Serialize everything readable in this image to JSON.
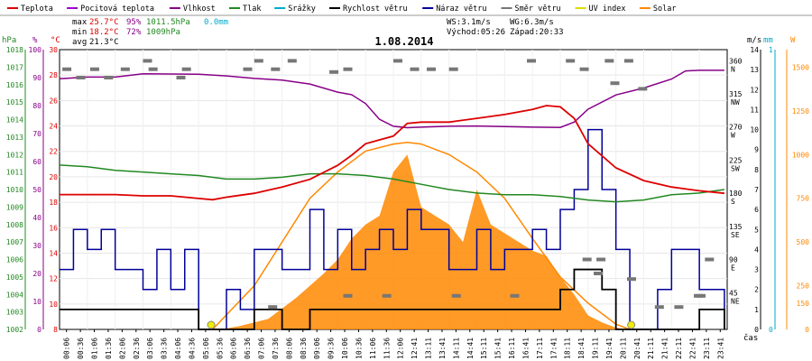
{
  "chart_data": {
    "type": "line",
    "title": "1.08.2014",
    "legend": [
      {
        "label": "Teplota",
        "color": "#dd0000"
      },
      {
        "label": "Pocitová teplota",
        "color": "#9900cc"
      },
      {
        "label": "Vlhkost",
        "color": "#880088"
      },
      {
        "label": "Tlak",
        "color": "#228822"
      },
      {
        "label": "Srážky",
        "color": "#00aacc"
      },
      {
        "label": "Rychlost větru",
        "color": "#000000"
      },
      {
        "label": "Náraz větru",
        "color": "#000099"
      },
      {
        "label": "Směr větru",
        "color": "#777777"
      },
      {
        "label": "UV index",
        "color": "#dddd00"
      },
      {
        "label": "Solar",
        "color": "#ff8800"
      }
    ],
    "stats": {
      "max_label": "max",
      "max_temp": "25.7°C",
      "max_hum": "95%",
      "max_press": "1011.5hPa",
      "rain": "0.0mm",
      "min_label": "min",
      "min_temp": "18.2°C",
      "min_hum": "72%",
      "min_press": "1009hPa",
      "avg_label": "avg",
      "avg_temp": "21.3°C"
    },
    "wind_info": {
      "ws": "WS:3.1m/s",
      "wg": "WG:6.3m/s",
      "sunrise": "Východ:05:26",
      "sunset": "Západ:20:33"
    },
    "left_axes": {
      "hpa": {
        "label": "hPa",
        "ticks": [
          "1002",
          "1003",
          "1004",
          "1005",
          "1006",
          "1007",
          "1008",
          "1009",
          "1010",
          "1011",
          "1012",
          "1013",
          "1014",
          "1015",
          "1016",
          "1017",
          "1018"
        ]
      },
      "pct": {
        "label": "%",
        "ticks": [
          "0",
          "10",
          "20",
          "30",
          "40",
          "50",
          "60",
          "70",
          "80",
          "90",
          "100"
        ]
      },
      "degc": {
        "label": "°C",
        "ticks": [
          "8",
          "10",
          "12",
          "14",
          "16",
          "18",
          "20",
          "22",
          "24",
          "26",
          "28",
          "30"
        ]
      }
    },
    "right_axes": {
      "dir": {
        "ticks": [
          "360 N",
          "315 NW",
          "270 W",
          "225 SW",
          "180 S",
          "135 SE",
          "90 E",
          "45 NE"
        ]
      },
      "ms": {
        "label": "m/s",
        "ticks": [
          "0",
          "1",
          "2",
          "3",
          "4",
          "5",
          "6",
          "7",
          "8",
          "9",
          "10",
          "11",
          "12",
          "13",
          "14"
        ]
      },
      "mm": {
        "label": "mm",
        "ticks": [
          "0",
          "1"
        ]
      },
      "wm2": {
        "label": "W",
        "ticks": [
          "0",
          "150",
          "250",
          "500",
          "750",
          "1000",
          "1250",
          "1500"
        ]
      }
    },
    "xlabel": "čas",
    "x_ticks": [
      "00:06",
      "00:36",
      "01:06",
      "01:36",
      "02:06",
      "02:36",
      "03:06",
      "03:36",
      "04:06",
      "04:36",
      "05:06",
      "05:36",
      "06:06",
      "06:36",
      "07:06",
      "07:36",
      "08:06",
      "08:36",
      "09:06",
      "09:36",
      "10:06",
      "10:36",
      "11:06",
      "11:36",
      "12:06",
      "12:41",
      "13:11",
      "13:41",
      "14:11",
      "14:41",
      "15:11",
      "15:41",
      "16:11",
      "16:41",
      "17:11",
      "17:41",
      "18:11",
      "18:41",
      "19:11",
      "19:41",
      "20:11",
      "20:41",
      "21:11",
      "21:41",
      "22:11",
      "22:41",
      "23:11",
      "23:41"
    ],
    "series": [
      {
        "name": "Teplota",
        "unit": "°C",
        "t": [
          0,
          1,
          2,
          3,
          4,
          5,
          5.5,
          6,
          7,
          8,
          9,
          10,
          10.5,
          11,
          11.5,
          12,
          12.5,
          13,
          14,
          15,
          16,
          17,
          17.5,
          18,
          18.5,
          19,
          20,
          21,
          22,
          23,
          23.9
        ],
        "values": [
          18.6,
          18.6,
          18.6,
          18.5,
          18.5,
          18.3,
          18.2,
          18.4,
          18.7,
          19.2,
          19.8,
          20.9,
          21.7,
          22.6,
          22.9,
          23.2,
          24.2,
          24.3,
          24.3,
          24.6,
          24.9,
          25.3,
          25.6,
          25.5,
          24.6,
          22.6,
          20.7,
          19.7,
          19.2,
          18.9,
          18.7
        ]
      },
      {
        "name": "Vlhkost",
        "unit": "%",
        "t": [
          0,
          1,
          2,
          3,
          4,
          5,
          6,
          7,
          8,
          9,
          10,
          10.5,
          11,
          11.5,
          12,
          12.5,
          13,
          14,
          15,
          16,
          17,
          18,
          18.5,
          19,
          20,
          21,
          22,
          22.5,
          23,
          23.9
        ],
        "values": [
          89.6,
          90.2,
          90.2,
          91.4,
          91.3,
          91.2,
          90.6,
          89.7,
          89.1,
          87.7,
          84.8,
          83.9,
          80.7,
          75.1,
          72.6,
          72.1,
          72.3,
          72.6,
          72.7,
          72.5,
          72.3,
          72.2,
          74.1,
          78.7,
          83.8,
          86.3,
          89.5,
          92.4,
          92.6,
          92.6
        ]
      },
      {
        "name": "Tlak",
        "unit": "hPa",
        "t": [
          0,
          1,
          2,
          3,
          4,
          5,
          6,
          7,
          8,
          9,
          10,
          11,
          12,
          13,
          14,
          15,
          16,
          17,
          18,
          19,
          20,
          21,
          22,
          23,
          23.9
        ],
        "values": [
          1011.4,
          1011.3,
          1011.1,
          1011.0,
          1010.9,
          1010.8,
          1010.6,
          1010.6,
          1010.7,
          1010.9,
          1010.9,
          1010.8,
          1010.6,
          1010.3,
          1010.0,
          1009.8,
          1009.7,
          1009.7,
          1009.6,
          1009.4,
          1009.3,
          1009.4,
          1009.7,
          1009.8,
          1010.0
        ]
      },
      {
        "name": "Rychlost větru",
        "unit": "m/s",
        "t": [
          0,
          2,
          4,
          5,
          6,
          7,
          8,
          9,
          10,
          11,
          12,
          13,
          14,
          15,
          16,
          17,
          18,
          18.5,
          19,
          19.5,
          20,
          21,
          22,
          23,
          23.9
        ],
        "values": [
          1,
          1,
          1,
          0,
          0,
          1,
          0,
          1,
          1,
          1,
          1,
          1,
          1,
          1,
          1,
          1,
          2,
          3,
          3,
          2,
          0,
          0,
          0,
          1,
          0
        ]
      },
      {
        "name": "Náraz větru",
        "unit": "m/s",
        "t": [
          0,
          0.5,
          1,
          1.5,
          2,
          3,
          3.5,
          4,
          4.5,
          5,
          6,
          6.5,
          7,
          8,
          9,
          9.5,
          10,
          10.5,
          11,
          11.5,
          12,
          12.5,
          13,
          14,
          15,
          15.5,
          16,
          17,
          17.5,
          18,
          18.5,
          19,
          19.5,
          20,
          20.5,
          21,
          21.5,
          22,
          23,
          23.9
        ],
        "values": [
          3,
          5,
          4,
          5,
          3,
          2,
          4,
          2,
          4,
          0,
          2,
          1,
          4,
          3,
          6,
          3,
          5,
          3,
          4,
          5,
          4,
          6,
          5,
          3,
          5,
          3,
          4,
          5,
          4,
          6,
          7,
          10,
          7,
          4,
          0,
          0,
          2,
          4,
          2,
          0
        ]
      },
      {
        "name": "Solar",
        "unit": "W/m²",
        "t": [
          5.5,
          6,
          6.5,
          7,
          7.5,
          8,
          8.5,
          9,
          9.5,
          10,
          10.5,
          11,
          11.5,
          12,
          12.5,
          13,
          13.5,
          14,
          14.5,
          15,
          15.5,
          16,
          16.5,
          17,
          17.5,
          18,
          18.5,
          19,
          19.5,
          20,
          20.5
        ],
        "values": [
          0,
          5,
          20,
          40,
          60,
          120,
          180,
          250,
          320,
          400,
          520,
          600,
          650,
          900,
          1000,
          700,
          650,
          600,
          500,
          800,
          600,
          550,
          500,
          450,
          420,
          300,
          200,
          80,
          40,
          10,
          0
        ]
      },
      {
        "name": "Solar (clear sky)",
        "unit": "W/m²",
        "t": [
          5.5,
          7,
          8,
          9,
          10,
          11,
          12,
          12.5,
          13,
          14,
          15,
          16,
          17,
          18,
          19,
          20,
          20.5
        ],
        "values": [
          0,
          250,
          500,
          750,
          900,
          1020,
          1060,
          1070,
          1060,
          1000,
          900,
          750,
          520,
          300,
          150,
          30,
          0
        ]
      }
    ]
  }
}
